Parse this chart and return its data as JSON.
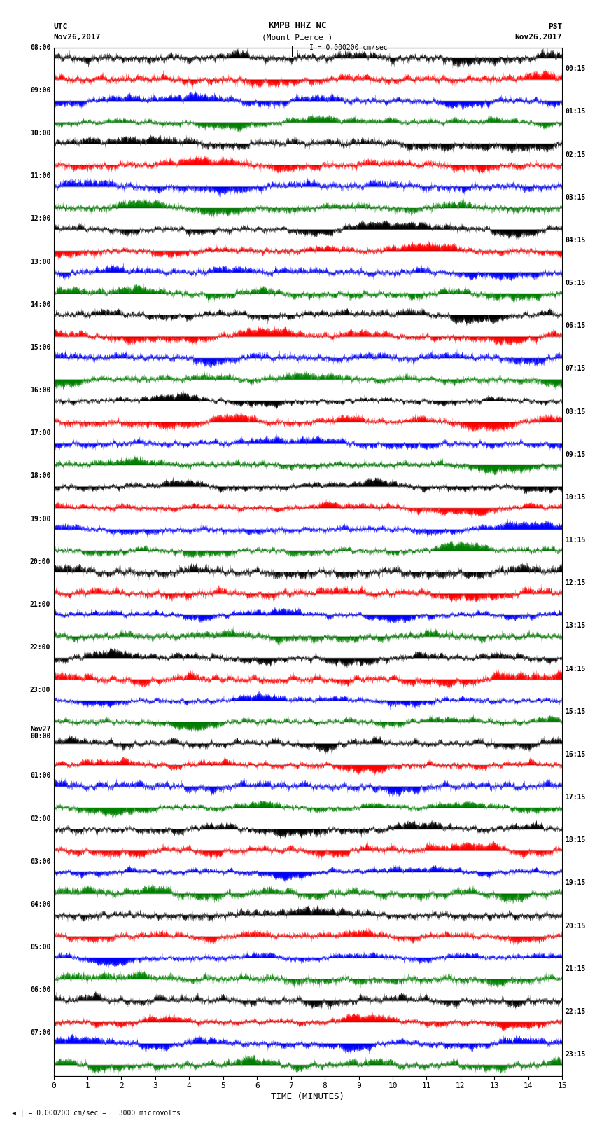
{
  "title_line1": "KMPB HHZ NC",
  "title_line2": "(Mount Pierce )",
  "scale_text": "I = 0.000200 cm/sec",
  "bottom_text": "\\u25c4 | = 0.000200 cm/sec =   3000 microvolts",
  "xlabel": "TIME (MINUTES)",
  "left_label_top": "UTC",
  "left_label_date": "Nov26,2017",
  "right_label_top": "PST",
  "right_label_date": "Nov26,2017",
  "left_times": [
    "08:00",
    "09:00",
    "10:00",
    "11:00",
    "12:00",
    "13:00",
    "14:00",
    "15:00",
    "16:00",
    "17:00",
    "18:00",
    "19:00",
    "20:00",
    "21:00",
    "22:00",
    "23:00",
    "Nov27\n00:00",
    "01:00",
    "02:00",
    "03:00",
    "04:00",
    "05:00",
    "06:00",
    "07:00"
  ],
  "right_times": [
    "00:15",
    "01:15",
    "02:15",
    "03:15",
    "04:15",
    "05:15",
    "06:15",
    "07:15",
    "08:15",
    "09:15",
    "10:15",
    "11:15",
    "12:15",
    "13:15",
    "14:15",
    "15:15",
    "16:15",
    "17:15",
    "18:15",
    "19:15",
    "20:15",
    "21:15",
    "22:15",
    "23:15"
  ],
  "n_traces": 48,
  "trace_duration_minutes": 15,
  "colors": [
    "black",
    "red",
    "blue",
    "green"
  ],
  "bg_color": "white",
  "plot_bg": "white",
  "xlim": [
    0,
    15
  ],
  "xticks": [
    0,
    1,
    2,
    3,
    4,
    5,
    6,
    7,
    8,
    9,
    10,
    11,
    12,
    13,
    14,
    15
  ],
  "seed": 42
}
